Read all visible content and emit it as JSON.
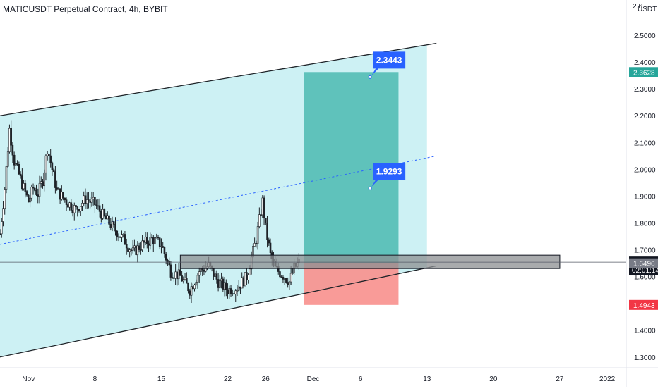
{
  "header": {
    "title": "MATICUSDT Perpetual Contract, 4h, BYBIT"
  },
  "colors": {
    "up": "#26a69a",
    "down": "#ef5350",
    "candle": "#1e2328",
    "channel_fill": "#cdf1f4",
    "target_fill": "#5fc2bb",
    "stop_fill": "#f8908d",
    "zone_fill": "#8c8f92",
    "callout": "#2962ff",
    "mid_line": "#2962ff",
    "badge_target": "#26a69a",
    "badge_price": "#131722",
    "badge_entry": "#787b86",
    "badge_stop": "#f23645"
  },
  "chart_data": {
    "type": "candlestick",
    "symbol": "MATICUSDT Perpetual Contract",
    "interval": "4h",
    "exchange": "BYBIT",
    "currency_label": "USDT",
    "ylim": [
      1.26,
      2.6
    ],
    "y_ticks": [
      "2.5000",
      "2.4000",
      "2.3000",
      "2.2000",
      "2.1000",
      "2.0000",
      "1.9000",
      "1.8000",
      "1.7000",
      "1.6000",
      "1.5000",
      "1.4000",
      "1.3000"
    ],
    "y_tick_values": [
      2.5,
      2.4,
      2.3,
      2.2,
      2.1,
      2.0,
      1.9,
      1.8,
      1.7,
      1.6,
      1.5,
      1.4,
      1.3
    ],
    "top_partial_tick": "2.6",
    "x_axis": {
      "start": "2021-10-29",
      "end": "2022-01-03",
      "tick_labels": [
        "Nov",
        "8",
        "15",
        "22",
        "26",
        "Dec",
        "6",
        "13",
        "20",
        "27",
        "2022"
      ],
      "tick_dates": [
        "2021-11-01",
        "2021-11-08",
        "2021-11-15",
        "2021-11-22",
        "2021-11-26",
        "2021-12-01",
        "2021-12-06",
        "2021-12-13",
        "2021-12-20",
        "2021-12-27",
        "2022-01-01"
      ]
    },
    "price_path": [
      [
        "2021-10-29",
        1.76
      ],
      [
        "2021-10-29T12:00",
        1.93
      ],
      [
        "2021-10-30",
        2.15
      ],
      [
        "2021-10-30T12:00",
        2.03
      ],
      [
        "2021-10-31",
        1.98
      ],
      [
        "2021-11-01",
        1.88
      ],
      [
        "2021-11-01T12:00",
        1.93
      ],
      [
        "2021-11-02",
        1.91
      ],
      [
        "2021-11-02T12:00",
        1.96
      ],
      [
        "2021-11-03",
        2.08
      ],
      [
        "2021-11-03T12:00",
        2.0
      ],
      [
        "2021-11-04",
        1.92
      ],
      [
        "2021-11-05",
        1.88
      ],
      [
        "2021-11-06",
        1.85
      ],
      [
        "2021-11-07",
        1.89
      ],
      [
        "2021-11-08",
        1.87
      ],
      [
        "2021-11-09",
        1.82
      ],
      [
        "2021-11-10",
        1.78
      ],
      [
        "2021-11-11",
        1.74
      ],
      [
        "2021-11-12",
        1.69
      ],
      [
        "2021-11-13",
        1.72
      ],
      [
        "2021-11-14",
        1.74
      ],
      [
        "2021-11-15",
        1.72
      ],
      [
        "2021-11-16",
        1.62
      ],
      [
        "2021-11-17",
        1.6
      ],
      [
        "2021-11-18",
        1.55
      ],
      [
        "2021-11-19",
        1.62
      ],
      [
        "2021-11-20",
        1.64
      ],
      [
        "2021-11-21",
        1.58
      ],
      [
        "2021-11-22",
        1.55
      ],
      [
        "2021-11-23",
        1.56
      ],
      [
        "2021-11-24",
        1.6
      ],
      [
        "2021-11-25",
        1.74
      ],
      [
        "2021-11-25T16:00",
        1.88
      ],
      [
        "2021-11-26",
        1.78
      ],
      [
        "2021-11-26T12:00",
        1.68
      ],
      [
        "2021-11-27",
        1.63
      ],
      [
        "2021-11-28",
        1.6
      ],
      [
        "2021-11-28T12:00",
        1.58
      ],
      [
        "2021-11-29",
        1.63
      ],
      [
        "2021-11-29T12:00",
        1.6537
      ]
    ],
    "channel": {
      "upper": [
        [
          "2021-10-29",
          2.2
        ],
        [
          "2021-12-14",
          2.47
        ]
      ],
      "lower": [
        [
          "2021-10-29",
          1.3
        ],
        [
          "2021-12-14",
          1.64
        ]
      ],
      "mid": [
        [
          "2021-10-29",
          1.72
        ],
        [
          "2021-12-14",
          2.05
        ]
      ],
      "fill_end_date": "2021-12-13"
    },
    "position": {
      "start_date": "2021-11-30",
      "end_date": "2021-12-10",
      "target": 2.3628,
      "entry": 1.6496,
      "stop": 1.4943
    },
    "zone": {
      "start_date": "2021-11-17",
      "end_date": "2021-12-27",
      "top": 1.68,
      "bottom": 1.63
    },
    "current_price_line": 1.6537,
    "badges": [
      {
        "label": "2.3628",
        "value": 2.3628,
        "kind": "target"
      },
      {
        "label": "1.6537",
        "sub": "02:01:14",
        "value": 1.6537,
        "kind": "price"
      },
      {
        "label": "1.6496",
        "value": 1.6496,
        "kind": "entry"
      },
      {
        "label": "1.4943",
        "value": 1.4943,
        "kind": "stop"
      }
    ],
    "callouts": [
      {
        "label": "2.3443",
        "date": "2021-12-07",
        "value": 2.3443
      },
      {
        "label": "1.9293",
        "date": "2021-12-07",
        "value": 1.9293
      }
    ]
  }
}
